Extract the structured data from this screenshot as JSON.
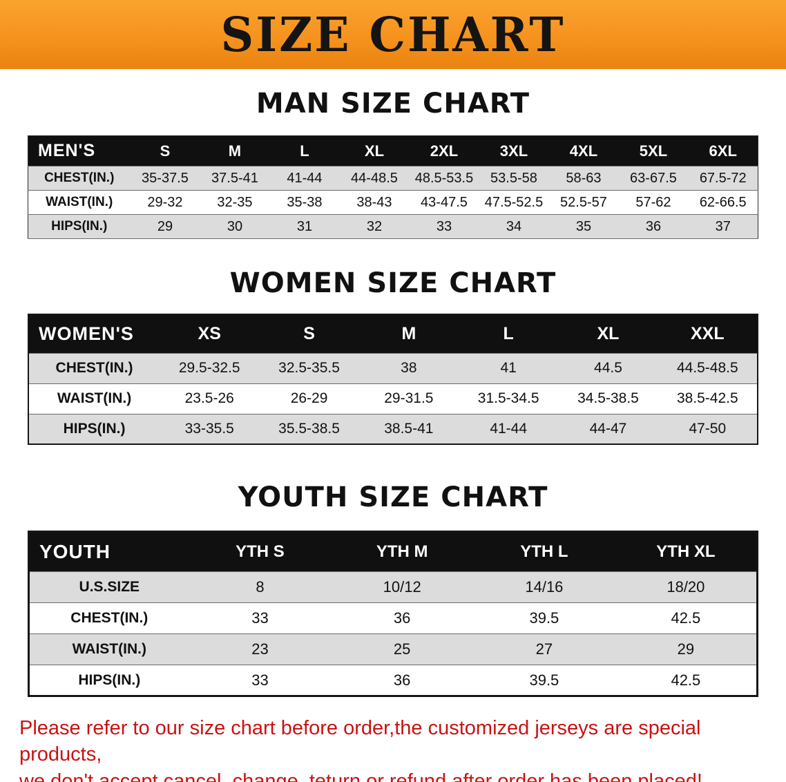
{
  "banner": {
    "title": "SIZE CHART"
  },
  "colors": {
    "banner_orange": "#f6921e",
    "table_header_black": "#101010",
    "row_gray": "#dcdcdc",
    "row_white": "#ffffff",
    "heading_black": "#111111",
    "disclaimer_red": "#cc1111"
  },
  "sections": [
    {
      "heading": "MAN SIZE CHART",
      "table": {
        "header_label": "MEN'S",
        "columns": [
          "S",
          "M",
          "L",
          "XL",
          "2XL",
          "3XL",
          "4XL",
          "5XL",
          "6XL"
        ],
        "rows": [
          {
            "label": "CHEST(IN.)",
            "values": [
              "35-37.5",
              "37.5-41",
              "41-44",
              "44-48.5",
              "48.5-53.5",
              "53.5-58",
              "58-63",
              "63-67.5",
              "67.5-72"
            ]
          },
          {
            "label": "WAIST(IN.)",
            "values": [
              "29-32",
              "32-35",
              "35-38",
              "38-43",
              "43-47.5",
              "47.5-52.5",
              "52.5-57",
              "57-62",
              "62-66.5"
            ]
          },
          {
            "label": "HIPS(IN.)",
            "values": [
              "29",
              "30",
              "31",
              "32",
              "33",
              "34",
              "35",
              "36",
              "37"
            ]
          }
        ]
      }
    },
    {
      "heading": "WOMEN SIZE CHART",
      "table": {
        "header_label": "WOMEN'S",
        "columns": [
          "XS",
          "S",
          "M",
          "L",
          "XL",
          "XXL"
        ],
        "rows": [
          {
            "label": "CHEST(IN.)",
            "values": [
              "29.5-32.5",
              "32.5-35.5",
              "38",
              "41",
              "44.5",
              "44.5-48.5"
            ]
          },
          {
            "label": "WAIST(IN.)",
            "values": [
              "23.5-26",
              "26-29",
              "29-31.5",
              "31.5-34.5",
              "34.5-38.5",
              "38.5-42.5"
            ]
          },
          {
            "label": "HIPS(IN.)",
            "values": [
              "33-35.5",
              "35.5-38.5",
              "38.5-41",
              "41-44",
              "44-47",
              "47-50"
            ]
          }
        ]
      }
    },
    {
      "heading": "YOUTH SIZE CHART",
      "table": {
        "header_label": "YOUTH",
        "columns": [
          "YTH S",
          "YTH M",
          "YTH L",
          "YTH XL"
        ],
        "rows": [
          {
            "label": "U.S.SIZE",
            "values": [
              "8",
              "10/12",
              "14/16",
              "18/20"
            ]
          },
          {
            "label": "CHEST(IN.)",
            "values": [
              "33",
              "36",
              "39.5",
              "42.5"
            ]
          },
          {
            "label": "WAIST(IN.)",
            "values": [
              "23",
              "25",
              "27",
              "29"
            ]
          },
          {
            "label": "HIPS(IN.)",
            "values": [
              "33",
              "36",
              "39.5",
              "42.5"
            ]
          }
        ]
      }
    }
  ],
  "footer": {
    "line1": "Please refer to our size chart before order,the customized jerseys are special products,",
    "line2": "we don't accept cancel, change, teturn or refund after order has been placed!"
  }
}
